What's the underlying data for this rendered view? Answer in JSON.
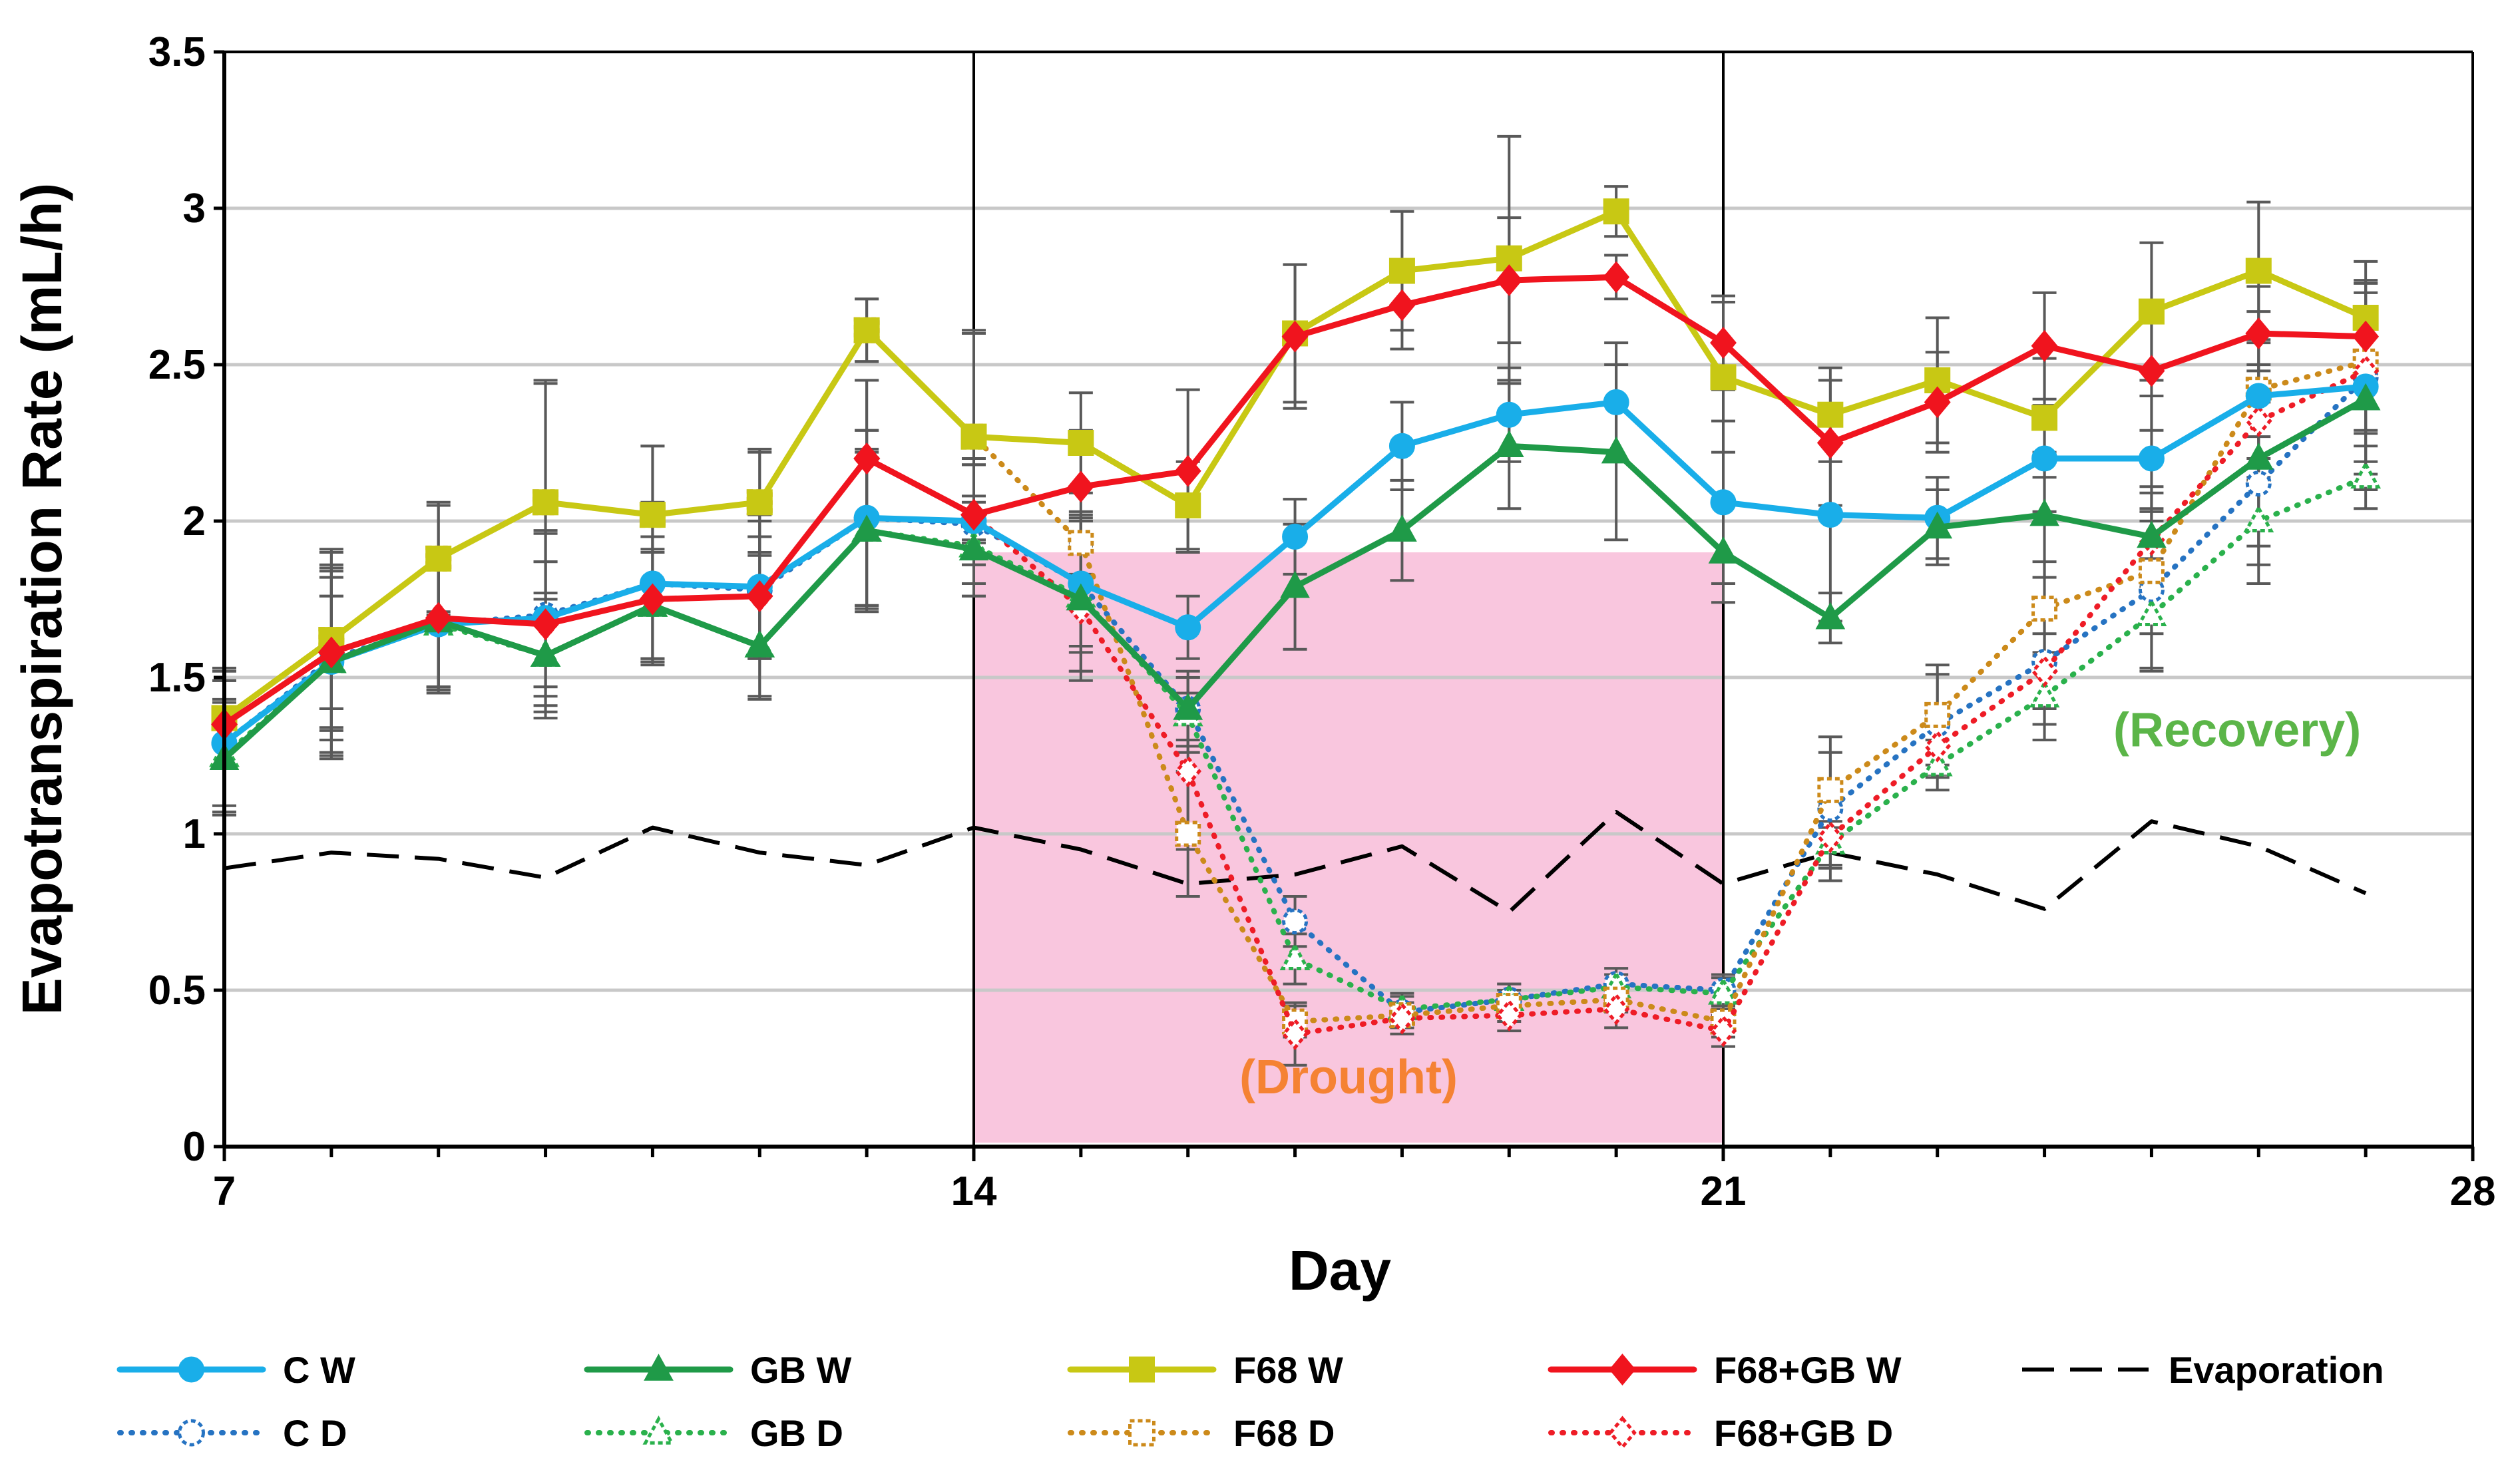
{
  "chart_data": {
    "type": "line",
    "title": "",
    "xlabel": "Day",
    "ylabel": "Evapotranspiration Rate (mL/h)",
    "xlim": [
      7,
      28
    ],
    "ylim": [
      0,
      3.5
    ],
    "x_ticks": [
      "7",
      "14",
      "21",
      "28"
    ],
    "y_ticks": [
      "0",
      "0.5",
      "1",
      "1.5",
      "2",
      "2.5",
      "3",
      "3.5"
    ],
    "x_tick_values": [
      7,
      14,
      21,
      28
    ],
    "y_tick_values": [
      0,
      0.5,
      1,
      1.5,
      2,
      2.5,
      3,
      3.5
    ],
    "grid": "horizontal",
    "legend_position": "bottom",
    "shaded_region": {
      "label": "(Drought)",
      "x_start": 14,
      "x_end": 21,
      "y_top": 1.9,
      "color": "#f9c6de",
      "label_color": "#f58233",
      "label_x": 17.5,
      "label_y": 0.17
    },
    "recovery_label": {
      "text": "(Recovery)",
      "color": "#5bb548",
      "x": 25.8,
      "y": 1.28
    },
    "vertical_lines": [
      14,
      21
    ],
    "x": [
      7,
      8,
      9,
      10,
      11,
      12,
      13,
      14,
      15,
      16,
      17,
      18,
      19,
      20,
      21,
      22,
      23,
      24,
      25,
      26,
      27
    ],
    "series": [
      {
        "name": "C W",
        "color": "#19aee9",
        "style": "solid",
        "marker": "circle",
        "filled": true,
        "values": [
          1.29,
          1.55,
          1.67,
          1.69,
          1.8,
          1.79,
          2.01,
          2.0,
          1.8,
          1.66,
          1.95,
          2.24,
          2.34,
          2.38,
          2.06,
          2.02,
          2.01,
          2.2,
          2.2,
          2.4,
          2.43
        ],
        "errors": [
          0.23,
          0.3,
          0.22,
          0.28,
          0.26,
          0.23,
          0.28,
          0.2,
          0.22,
          0.1,
          0.12,
          0.14,
          0.15,
          0.19,
          0.26,
          0.34,
          0.13,
          0.17,
          0.2,
          0.27,
          0.33
        ]
      },
      {
        "name": "GB W",
        "color": "#1f9a48",
        "style": "solid",
        "marker": "triangle",
        "filled": true,
        "values": [
          1.24,
          1.55,
          1.68,
          1.57,
          1.73,
          1.6,
          1.97,
          1.91,
          1.75,
          1.4,
          1.79,
          1.97,
          2.24,
          2.22,
          1.9,
          1.69,
          1.98,
          2.02,
          1.95,
          2.2,
          2.39
        ],
        "errors": [
          0.18,
          0.31,
          0.22,
          0.2,
          0.18,
          0.17,
          0.26,
          0.15,
          0.26,
          0.12,
          0.2,
          0.16,
          0.2,
          0.28,
          0.16,
          0.08,
          0.12,
          0.2,
          0.16,
          0.28,
          0.2
        ]
      },
      {
        "name": "F68 W",
        "color": "#c8c814",
        "style": "solid",
        "marker": "square",
        "filled": true,
        "values": [
          1.37,
          1.62,
          1.88,
          2.06,
          2.02,
          2.06,
          2.61,
          2.27,
          2.25,
          2.05,
          2.6,
          2.8,
          2.84,
          2.99,
          2.46,
          2.34,
          2.45,
          2.33,
          2.67,
          2.8,
          2.65
        ],
        "errors": [
          0.16,
          0.29,
          0.18,
          0.39,
          0.22,
          0.17,
          0.1,
          0.34,
          0.16,
          0.14,
          0.22,
          0.19,
          0.39,
          0.08,
          0.24,
          0.15,
          0.2,
          0.19,
          0.22,
          0.22,
          0.18
        ]
      },
      {
        "name": "F68+GB W",
        "color": "#f0141e",
        "style": "solid",
        "marker": "diamond",
        "filled": true,
        "values": [
          1.35,
          1.58,
          1.69,
          1.67,
          1.75,
          1.76,
          2.2,
          2.02,
          2.11,
          2.16,
          2.59,
          2.69,
          2.77,
          2.78,
          2.57,
          2.25,
          2.38,
          2.56,
          2.48,
          2.6,
          2.59
        ],
        "errors": [
          0.14,
          0.18,
          0.22,
          0.2,
          0.2,
          0.19,
          0.25,
          0.16,
          0.18,
          0.26,
          0.23,
          0.14,
          0.2,
          0.07,
          0.15,
          0.2,
          0.16,
          0.17,
          0.19,
          0.15,
          0.17
        ]
      },
      {
        "name": "Evaporation",
        "color": "#000000",
        "style": "dashed",
        "marker": "none",
        "filled": false,
        "values": [
          0.89,
          0.94,
          0.92,
          0.86,
          1.02,
          0.94,
          0.9,
          1.02,
          0.95,
          0.84,
          0.87,
          0.96,
          0.75,
          1.07,
          0.84,
          0.94,
          0.87,
          0.76,
          1.04,
          0.96,
          0.81
        ],
        "errors": []
      },
      {
        "name": "C D",
        "color": "#2673c2",
        "style": "dotted",
        "marker": "circle",
        "filled": false,
        "values": [
          1.29,
          1.56,
          1.67,
          1.7,
          1.8,
          1.78,
          2.01,
          1.99,
          1.8,
          1.4,
          0.72,
          0.43,
          0.47,
          0.52,
          0.5,
          1.08,
          1.35,
          1.55,
          1.78,
          2.12,
          2.46
        ],
        "errors": [
          0.2,
          0.26,
          0.2,
          0.26,
          0.24,
          0.22,
          0.28,
          0.19,
          0.2,
          0.1,
          0.08,
          0.05,
          0.05,
          0.05,
          0.05,
          0.23,
          0.16,
          0.2,
          0.25,
          0.26,
          0.31
        ]
      },
      {
        "name": "GB D",
        "color": "#2ab14c",
        "style": "dotted",
        "marker": "triangle",
        "filled": false,
        "values": [
          1.25,
          1.55,
          1.67,
          1.57,
          1.73,
          1.6,
          1.97,
          1.92,
          1.76,
          1.38,
          0.6,
          0.44,
          0.47,
          0.51,
          0.49,
          0.97,
          1.22,
          1.44,
          1.7,
          2.0,
          2.14
        ],
        "errors": [
          0.18,
          0.29,
          0.21,
          0.18,
          0.17,
          0.16,
          0.25,
          0.16,
          0.24,
          0.12,
          0.08,
          0.05,
          0.05,
          0.04,
          0.05,
          0.07,
          0.08,
          0.14,
          0.18,
          0.2,
          0.1
        ]
      },
      {
        "name": "F68 D",
        "color": "#cc8a1a",
        "style": "dotted",
        "marker": "square",
        "filled": false,
        "values": [
          1.37,
          1.62,
          1.88,
          2.06,
          2.02,
          2.06,
          2.61,
          2.27,
          1.93,
          1.0,
          0.4,
          0.42,
          0.45,
          0.47,
          0.4,
          1.14,
          1.38,
          1.72,
          1.84,
          2.42,
          2.51
        ],
        "errors": [
          0.15,
          0.28,
          0.17,
          0.38,
          0.22,
          0.16,
          0.1,
          0.33,
          0.1,
          0.2,
          0.05,
          0.04,
          0.05,
          0.04,
          0.05,
          0.12,
          0.16,
          0.15,
          0.2,
          0.15,
          0.22
        ]
      },
      {
        "name": "F68+GB D",
        "color": "#ee1c26",
        "style": "dotted",
        "marker": "diamond",
        "filled": false,
        "values": [
          1.35,
          1.58,
          1.69,
          1.67,
          1.75,
          1.76,
          2.2,
          2.02,
          1.72,
          1.2,
          0.36,
          0.41,
          0.42,
          0.44,
          0.37,
          0.99,
          1.28,
          1.52,
          1.94,
          2.32,
          2.48
        ],
        "errors": [
          0.14,
          0.18,
          0.22,
          0.2,
          0.2,
          0.19,
          0.25,
          0.16,
          0.2,
          0.25,
          0.1,
          0.05,
          0.05,
          0.06,
          0.05,
          0.1,
          0.1,
          0.12,
          0.15,
          0.18,
          0.2
        ]
      }
    ]
  }
}
